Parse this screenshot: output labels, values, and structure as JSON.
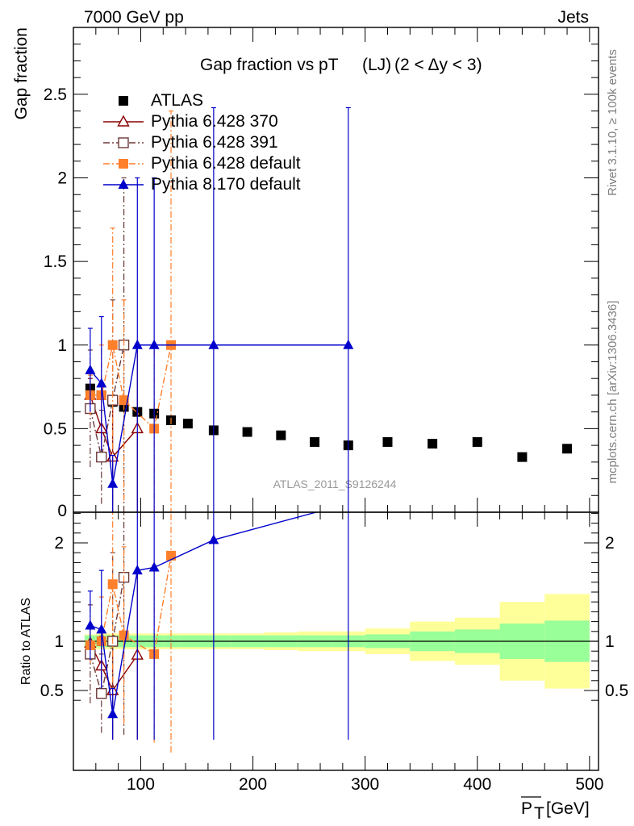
{
  "header": {
    "left": "7000 GeV pp",
    "right": "Jets"
  },
  "plot_title": {
    "main": "Gap fraction vs pT",
    "sub": "(LJ)",
    "cut": "(2 < Δy < 3)"
  },
  "side_text": {
    "rivet": "Rivet 3.1.10, ≥ 100k events",
    "mcplots": "mcplots.cern.ch [arXiv:1306.3436]"
  },
  "watermark": "ATLAS_2011_S9126244",
  "chart_data": [
    {
      "type": "scatter",
      "panel": "main",
      "ylabel": "Gap fraction",
      "xlim": [
        40,
        508
      ],
      "ylim": [
        0,
        2.9
      ],
      "x_ticks": [
        100,
        200,
        300,
        400,
        500
      ],
      "y_ticks": [
        0.5,
        1,
        1.5,
        2,
        2.5
      ],
      "y_tick_labels": [
        "0.5",
        "1",
        "1.5",
        "2",
        "2.5"
      ],
      "y_bottom_label": "0",
      "legend_position": "top-left",
      "series": [
        {
          "name": "ATLAS",
          "color": "#000000",
          "marker": "square-filled",
          "x": [
            55,
            65,
            75,
            85,
            97,
            112,
            127,
            142,
            165,
            195,
            225,
            255,
            285,
            320,
            360,
            400,
            440,
            480
          ],
          "values": [
            0.74,
            0.7,
            0.66,
            0.63,
            0.6,
            0.59,
            0.55,
            0.53,
            0.49,
            0.48,
            0.46,
            0.42,
            0.4,
            0.42,
            0.41,
            0.42,
            0.33,
            0.38
          ],
          "errors": [
            0.02,
            0.02,
            0.02,
            0.02,
            0.02,
            0.02,
            0.02,
            0.02,
            0.02,
            0.02,
            0.02,
            0.02,
            0.02,
            0.02,
            0.02,
            0.02,
            0.02,
            0.02
          ]
        },
        {
          "name": "Pythia 6.428 370",
          "color": "#8b0000",
          "marker": "triangle-open",
          "dash": "",
          "x": [
            55,
            65,
            75,
            97
          ],
          "values": [
            0.7,
            0.5,
            0.33,
            0.5
          ],
          "errors": [
            0.1,
            0.2,
            0.33,
            0.5
          ]
        },
        {
          "name": "Pythia 6.428 391",
          "color": "#6b3a3a",
          "marker": "square-open",
          "dash": "8,3,2,3",
          "x": [
            55,
            65,
            75,
            85
          ],
          "values": [
            0.62,
            0.33,
            0.67,
            1.0
          ],
          "errors": [
            0.35,
            0.28,
            0.6,
            1.0
          ]
        },
        {
          "name": "Pythia 6.428 default",
          "color": "#ff7f2a",
          "marker": "square-filled",
          "dash": "8,3,2,3",
          "x": [
            55,
            65,
            75,
            85,
            112,
            127
          ],
          "values": [
            0.7,
            0.7,
            1.0,
            0.67,
            0.5,
            1.0
          ],
          "errors": [
            0.12,
            0.3,
            0.7,
            0.6,
            0.5,
            1.4
          ]
        },
        {
          "name": "Pythia 8.170 default",
          "color": "#0000cc",
          "marker": "triangle-filled",
          "dash": "",
          "x": [
            55,
            65,
            75,
            97,
            112,
            165,
            285
          ],
          "values": [
            0.85,
            0.77,
            0.17,
            1.0,
            1.0,
            1.0,
            1.0
          ],
          "errors": [
            0.25,
            0.4,
            0.17,
            1.0,
            1.0,
            1.42,
            1.42
          ]
        }
      ]
    },
    {
      "type": "scatter",
      "panel": "ratio",
      "ylabel": "Ratio to ATLAS",
      "xlabel": "P_T [GeV]",
      "xlabel_main": "P",
      "xlabel_sub": "T",
      "xlabel_unit": "[GeV]",
      "xlim": [
        40,
        508
      ],
      "ylim": [
        0.34,
        2.35
      ],
      "x_ticks": [
        100,
        200,
        300,
        400,
        500
      ],
      "x_tick_labels": [
        "100",
        "200",
        "300",
        "400",
        "500"
      ],
      "y_ticks": [
        0.5,
        1,
        2
      ],
      "y_tick_labels": [
        "0.5",
        "1",
        "2"
      ],
      "reference_line": 1,
      "uncertainty_bands": {
        "x_edges": [
          50,
          60,
          70,
          80,
          90,
          105,
          120,
          135,
          150,
          180,
          210,
          240,
          270,
          300,
          340,
          380,
          420,
          460,
          500
        ],
        "inner": [
          0.06,
          0.06,
          0.06,
          0.06,
          0.06,
          0.06,
          0.06,
          0.06,
          0.06,
          0.06,
          0.06,
          0.06,
          0.06,
          0.07,
          0.1,
          0.12,
          0.18,
          0.21
        ],
        "outer": [
          0.07,
          0.08,
          0.08,
          0.08,
          0.08,
          0.08,
          0.08,
          0.08,
          0.08,
          0.08,
          0.09,
          0.1,
          0.1,
          0.13,
          0.2,
          0.24,
          0.4,
          0.48
        ],
        "inner_color": "#99ff99",
        "outer_color": "#ffff99"
      },
      "series": [
        {
          "name": "Pythia 6.428 370",
          "color": "#8b0000",
          "marker": "triangle-open",
          "dash": "",
          "x": [
            55,
            65,
            75,
            97
          ],
          "values": [
            0.98,
            0.75,
            0.5,
            0.86
          ],
          "errors": [
            0.15,
            0.3,
            0.5,
            0.86
          ]
        },
        {
          "name": "Pythia 6.428 391",
          "color": "#6b3a3a",
          "marker": "square-open",
          "dash": "8,3,2,3",
          "x": [
            55,
            65,
            75,
            85
          ],
          "values": [
            0.87,
            0.47,
            1.0,
            1.65
          ],
          "errors": [
            0.5,
            0.4,
            0.9,
            1.6
          ]
        },
        {
          "name": "Pythia 6.428 default",
          "color": "#ff7f2a",
          "marker": "square-filled",
          "dash": "8,3,2,3",
          "x": [
            55,
            65,
            75,
            85,
            112,
            127
          ],
          "values": [
            0.96,
            1.0,
            1.58,
            1.06,
            0.87,
            1.87
          ],
          "errors": [
            0.18,
            0.45,
            1.0,
            0.9,
            0.9,
            2.0
          ]
        },
        {
          "name": "Pythia 8.170 default",
          "color": "#0000cc",
          "marker": "triangle-filled",
          "dash": "",
          "x": [
            55,
            65,
            75,
            97,
            112,
            165,
            285
          ],
          "values": [
            1.16,
            1.12,
            0.26,
            1.72,
            1.75,
            2.03,
            2.4
          ],
          "errors": [
            0.35,
            0.6,
            0.26,
            1.72,
            1.75,
            2.03,
            2.4
          ]
        }
      ]
    }
  ]
}
